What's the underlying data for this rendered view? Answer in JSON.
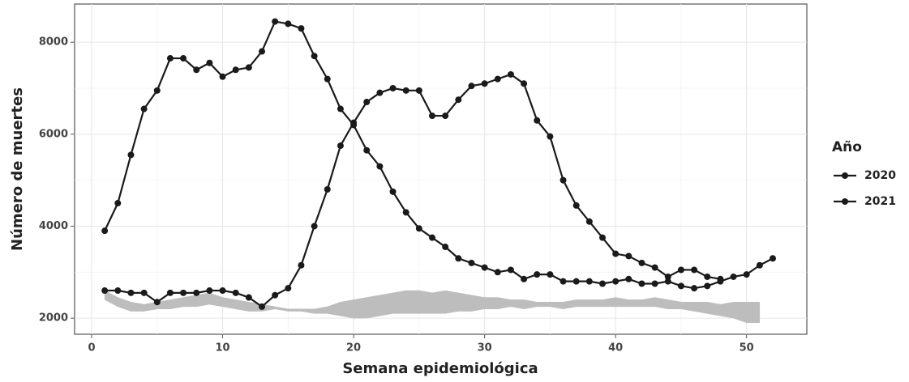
{
  "chart_data": {
    "type": "line",
    "xlabel": "Semana epidemiológica",
    "ylabel": "Número de muertes",
    "legend_title": "Año",
    "legend": "right",
    "grid": true,
    "xlim": [
      -1.3,
      54.6
    ],
    "ylim": [
      1650,
      8830
    ],
    "xticks": [
      0,
      10,
      20,
      30,
      40,
      50
    ],
    "yticks": [
      2000,
      4000,
      6000,
      8000
    ],
    "x": [
      1,
      2,
      3,
      4,
      5,
      6,
      7,
      8,
      9,
      10,
      11,
      12,
      13,
      14,
      15,
      16,
      17,
      18,
      19,
      20,
      21,
      22,
      23,
      24,
      25,
      26,
      27,
      28,
      29,
      30,
      31,
      32,
      33,
      34,
      35,
      36,
      37,
      38,
      39,
      40,
      41,
      42,
      43,
      44,
      45,
      46,
      47,
      48,
      49,
      50,
      51,
      52
    ],
    "series": [
      {
        "name": "2020",
        "color": "#1a1a1a",
        "values": [
          2600,
          2600,
          2550,
          2550,
          2350,
          2550,
          2550,
          2550,
          2600,
          2600,
          2550,
          2450,
          2250,
          2500,
          2650,
          3150,
          4000,
          4800,
          5750,
          6250,
          6700,
          6900,
          7000,
          6950,
          6950,
          6400,
          6400,
          6750,
          7050,
          7100,
          7200,
          7300,
          7100,
          6300,
          5950,
          5000,
          4450,
          4100,
          3750,
          3400,
          3350,
          3200,
          3100,
          2900,
          3050,
          3050,
          2900,
          2850,
          null,
          null,
          null,
          null
        ]
      },
      {
        "name": "2021",
        "color": "#1a1a1a",
        "values": [
          3900,
          4500,
          5550,
          6550,
          6950,
          7650,
          7650,
          7400,
          7550,
          7250,
          7400,
          7450,
          7800,
          8450,
          8400,
          8300,
          7700,
          7200,
          6550,
          6200,
          5650,
          5300,
          4750,
          4300,
          3950,
          3750,
          3550,
          3300,
          3200,
          3100,
          3000,
          3050,
          2850,
          2950,
          2950,
          2800,
          2800,
          2800,
          2750,
          2800,
          2850,
          2750,
          2750,
          2800,
          2700,
          2650,
          2700,
          2800,
          2900,
          2950,
          3150,
          3300
        ]
      }
    ],
    "band": {
      "color": "#bdbdbd",
      "x": [
        1,
        2,
        3,
        4,
        5,
        6,
        7,
        8,
        9,
        10,
        11,
        12,
        13,
        14,
        15,
        16,
        17,
        18,
        19,
        20,
        21,
        22,
        23,
        24,
        25,
        26,
        27,
        28,
        29,
        30,
        31,
        32,
        33,
        34,
        35,
        36,
        37,
        38,
        39,
        40,
        41,
        42,
        43,
        44,
        45,
        46,
        47,
        48,
        49,
        50,
        51
      ],
      "lower": [
        2400,
        2250,
        2150,
        2150,
        2200,
        2200,
        2250,
        2250,
        2300,
        2250,
        2200,
        2150,
        2150,
        2200,
        2150,
        2150,
        2100,
        2100,
        2050,
        2000,
        2000,
        2050,
        2100,
        2100,
        2100,
        2100,
        2100,
        2150,
        2150,
        2200,
        2200,
        2250,
        2200,
        2250,
        2250,
        2200,
        2250,
        2250,
        2250,
        2250,
        2250,
        2250,
        2250,
        2200,
        2200,
        2150,
        2100,
        2050,
        2000,
        1900,
        1900
      ],
      "upper": [
        2600,
        2450,
        2350,
        2300,
        2350,
        2400,
        2450,
        2500,
        2550,
        2450,
        2400,
        2350,
        2300,
        2250,
        2200,
        2200,
        2200,
        2250,
        2350,
        2400,
        2450,
        2500,
        2550,
        2600,
        2600,
        2550,
        2600,
        2550,
        2500,
        2450,
        2450,
        2400,
        2400,
        2350,
        2350,
        2350,
        2400,
        2400,
        2400,
        2450,
        2400,
        2400,
        2450,
        2400,
        2350,
        2350,
        2350,
        2300,
        2350,
        2350,
        2350
      ]
    }
  }
}
